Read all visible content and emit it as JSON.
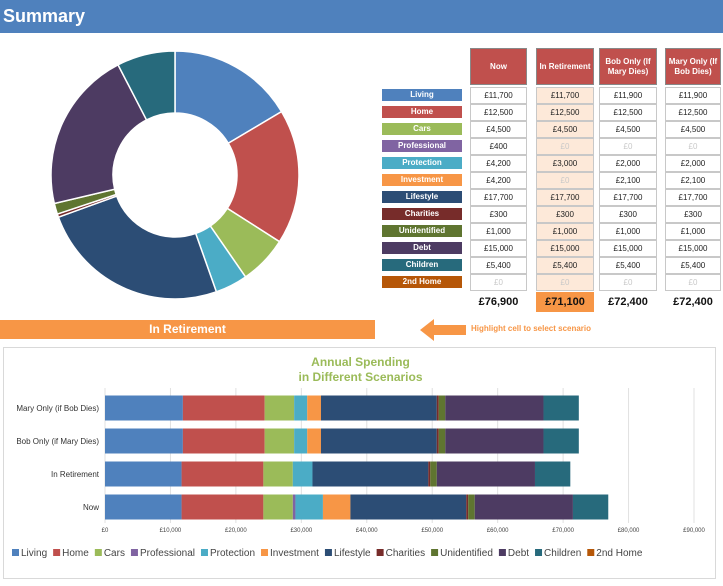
{
  "header": {
    "title": "Summary"
  },
  "columns": [
    "Now",
    "In Retirement",
    "Bob Only (If Mary Dies)",
    "Mary Only (If Bob Dies)"
  ],
  "categories": [
    {
      "label": "Living",
      "color": "#4f81bd",
      "values": [
        "£11,700",
        "£11,700",
        "£11,900",
        "£11,900"
      ]
    },
    {
      "label": "Home",
      "color": "#c0504d",
      "values": [
        "£12,500",
        "£12,500",
        "£12,500",
        "£12,500"
      ]
    },
    {
      "label": "Cars",
      "color": "#9bbb59",
      "values": [
        "£4,500",
        "£4,500",
        "£4,500",
        "£4,500"
      ]
    },
    {
      "label": "Professional",
      "color": "#8064a2",
      "values": [
        "£400",
        "£0",
        "£0",
        "£0"
      ]
    },
    {
      "label": "Protection",
      "color": "#4bacc6",
      "values": [
        "£4,200",
        "£3,000",
        "£2,000",
        "£2,000"
      ]
    },
    {
      "label": "Investment",
      "color": "#f79646",
      "values": [
        "£4,200",
        "£0",
        "£2,100",
        "£2,100"
      ]
    },
    {
      "label": "Lifestyle",
      "color": "#2c4d75",
      "values": [
        "£17,700",
        "£17,700",
        "£17,700",
        "£17,700"
      ]
    },
    {
      "label": "Charities",
      "color": "#772c2a",
      "values": [
        "£300",
        "£300",
        "£300",
        "£300"
      ]
    },
    {
      "label": "Unidentified",
      "color": "#5f7530",
      "values": [
        "£1,000",
        "£1,000",
        "£1,000",
        "£1,000"
      ]
    },
    {
      "label": "Debt",
      "color": "#4d3b62",
      "values": [
        "£15,000",
        "£15,000",
        "£15,000",
        "£15,000"
      ]
    },
    {
      "label": "Children",
      "color": "#276a7c",
      "values": [
        "£5,400",
        "£5,400",
        "£5,400",
        "£5,400"
      ]
    },
    {
      "label": "2nd Home",
      "color": "#b65708",
      "values": [
        "£0",
        "£0",
        "£0",
        "£0"
      ]
    }
  ],
  "totals": [
    "£76,900",
    "£71,100",
    "£72,400",
    "£72,400"
  ],
  "banner": {
    "scenario": "In Retirement",
    "hint": "Highlight cell to select scenario"
  },
  "colors": {
    "header_red": "#c0504d",
    "accent_orange": "#f79646",
    "top_bar": "#4f81bd",
    "highlight": "#fde9d9"
  },
  "chart_data": [
    {
      "type": "pie",
      "categories": [
        "Living",
        "Home",
        "Cars",
        "Professional",
        "Protection",
        "Investment",
        "Lifestyle",
        "Charities",
        "Unidentified",
        "Debt",
        "Children",
        "2nd Home"
      ],
      "values": [
        11700,
        12500,
        4500,
        0,
        3000,
        0,
        17700,
        300,
        1000,
        15000,
        5400,
        0
      ],
      "donut": true
    },
    {
      "type": "bar",
      "orientation": "horizontal",
      "stacked": true,
      "title": "Annual Spending\nin Different Scenarios",
      "categories": [
        "Mary Only (if Bob Dies)",
        "Bob Only (if Mary Dies)",
        "In Retirement",
        "Now"
      ],
      "series": [
        {
          "name": "Living",
          "values": [
            11900,
            11900,
            11700,
            11700
          ]
        },
        {
          "name": "Home",
          "values": [
            12500,
            12500,
            12500,
            12500
          ]
        },
        {
          "name": "Cars",
          "values": [
            4500,
            4500,
            4500,
            4500
          ]
        },
        {
          "name": "Professional",
          "values": [
            0,
            0,
            0,
            400
          ]
        },
        {
          "name": "Protection",
          "values": [
            2000,
            2000,
            3000,
            4200
          ]
        },
        {
          "name": "Investment",
          "values": [
            2100,
            2100,
            0,
            4200
          ]
        },
        {
          "name": "Lifestyle",
          "values": [
            17700,
            17700,
            17700,
            17700
          ]
        },
        {
          "name": "Charities",
          "values": [
            300,
            300,
            300,
            300
          ]
        },
        {
          "name": "Unidentified",
          "values": [
            1000,
            1000,
            1000,
            1000
          ]
        },
        {
          "name": "Debt",
          "values": [
            15000,
            15000,
            15000,
            15000
          ]
        },
        {
          "name": "Children",
          "values": [
            5400,
            5400,
            5400,
            5400
          ]
        },
        {
          "name": "2nd Home",
          "values": [
            0,
            0,
            0,
            0
          ]
        }
      ],
      "xlim": [
        0,
        90000
      ],
      "xticks": [
        "£0",
        "£10,000",
        "£20,000",
        "£30,000",
        "£40,000",
        "£50,000",
        "£60,000",
        "£70,000",
        "£80,000",
        "£90,000"
      ],
      "grid": true,
      "legend": "bottom"
    }
  ]
}
